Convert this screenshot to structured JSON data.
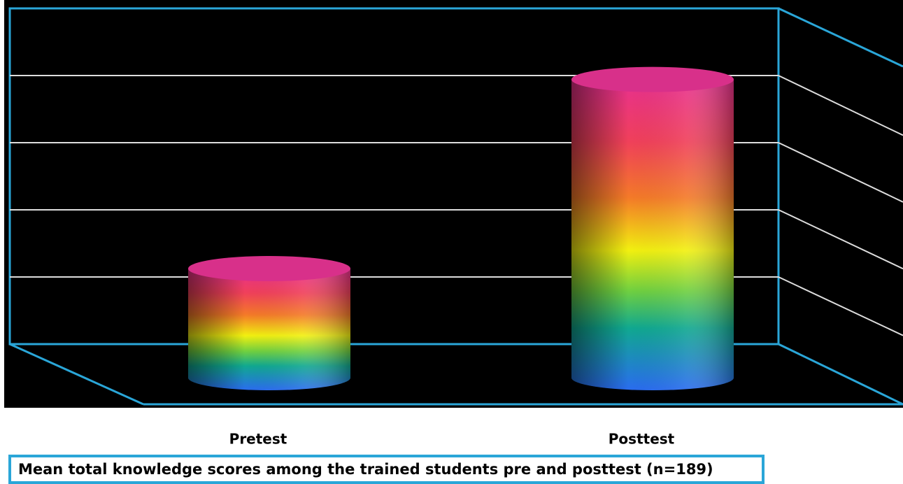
{
  "chart_data": {
    "type": "bar",
    "title": "Mean total knowledge scores among the trained students pre and posttest (n=189)",
    "categories": [
      "Pretest",
      "Posttest"
    ],
    "values": [
      1.5,
      4.1
    ],
    "ylim": [
      0,
      5
    ],
    "yticks": [
      1,
      2,
      3,
      4
    ],
    "grid": true
  }
}
